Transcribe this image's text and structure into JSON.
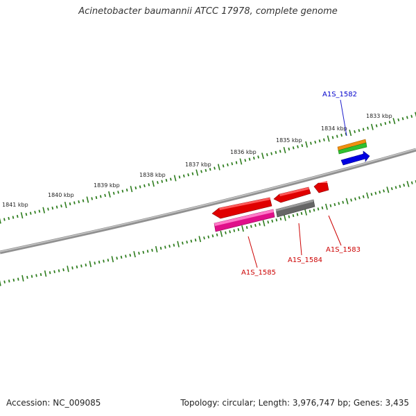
{
  "title": "Acinetobacter baumannii ATCC 17978, complete genome",
  "footer": {
    "accession": "Accession: NC_009085",
    "summary": "Topology: circular; Length: 3,976,747 bp; Genes: 3,435"
  },
  "ruler": {
    "labels": [
      "1833 kbp",
      "1834 kbp",
      "1835 kbp",
      "1836 kbp",
      "1837 kbp",
      "1838 kbp",
      "1839 kbp",
      "1840 kbp",
      "1841 kbp"
    ],
    "color": "#2e7d1e"
  },
  "genes": [
    {
      "name": "A1S_1582",
      "color": "#0000cc"
    },
    {
      "name": "A1S_1583",
      "color": "#cc0000"
    },
    {
      "name": "A1S_1584",
      "color": "#cc0000"
    },
    {
      "name": "A1S_1585",
      "color": "#cc0000"
    }
  ],
  "colors": {
    "backbone": "#808080",
    "gene_red": "#e00000",
    "gene_blue": "#0000e0",
    "gene_pink": "#e0108a",
    "gene_grey": "#666666",
    "gene_orange": "#f09010",
    "gene_green": "#30c030"
  }
}
